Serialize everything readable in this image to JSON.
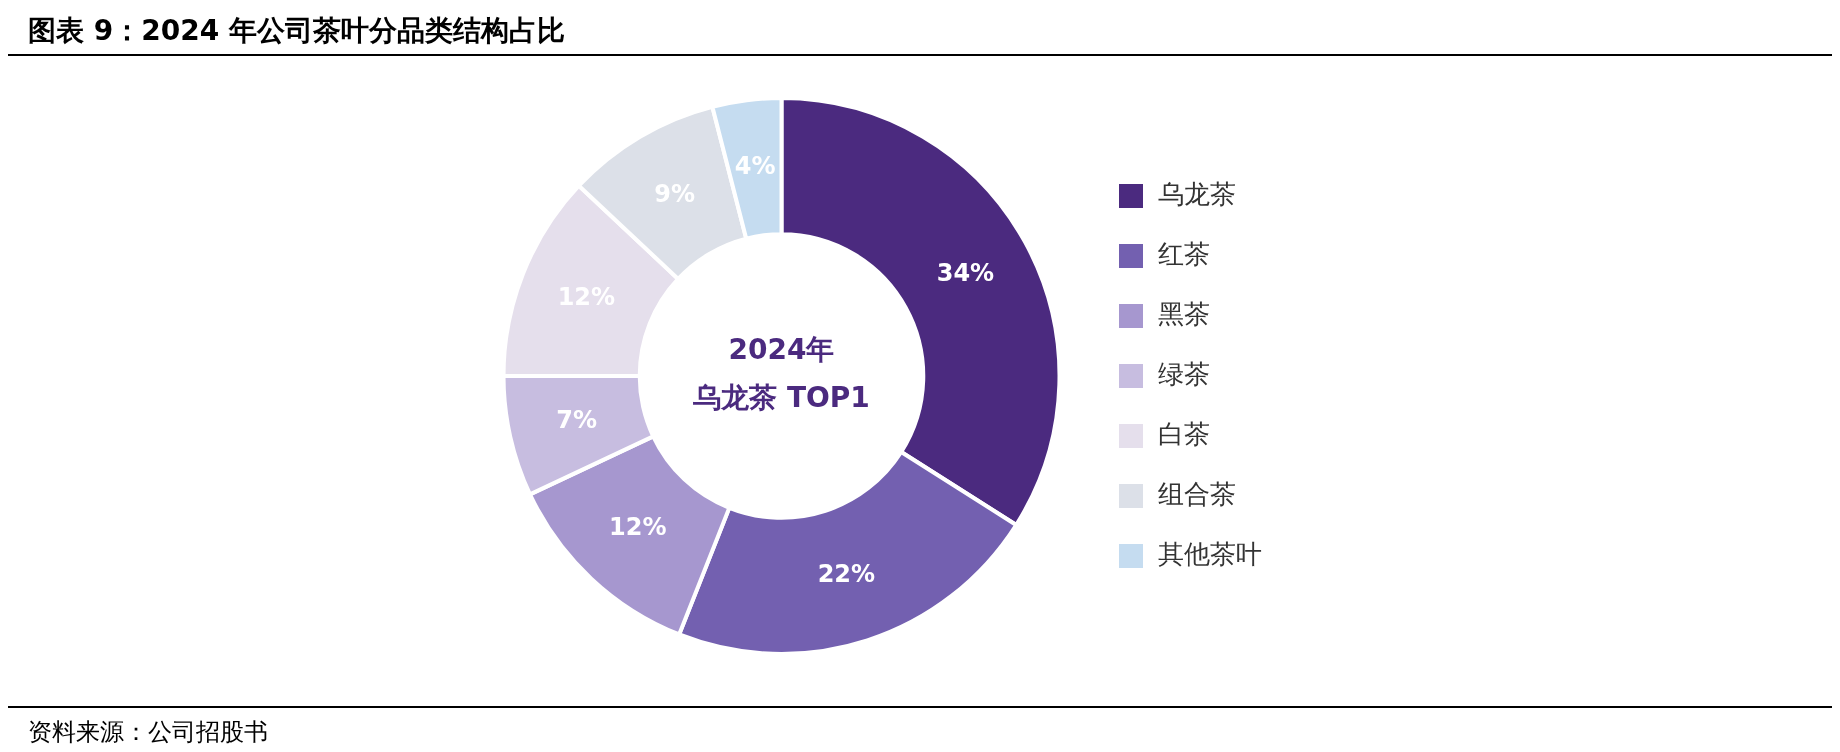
{
  "chart_data": {
    "type": "donut",
    "title": "图表 9：2024 年公司茶叶分品类结构占比",
    "categories": [
      "乌龙茶",
      "红茶",
      "黑茶",
      "绿茶",
      "白茶",
      "组合茶",
      "其他茶叶"
    ],
    "values": [
      34,
      22,
      12,
      7,
      12,
      9,
      4
    ],
    "colors": [
      "#4b2a7f",
      "#7360b0",
      "#a697cf",
      "#c7bde0",
      "#e5dfec",
      "#dce0e8",
      "#c5dcf0"
    ],
    "value_labels": [
      "34%",
      "22%",
      "12%",
      "7%",
      "12%",
      "9%",
      "4%"
    ],
    "legend": "right",
    "annotations": [
      "2024年",
      "乌龙茶 TOP1",
      "资料来源：公司招股书"
    ]
  }
}
